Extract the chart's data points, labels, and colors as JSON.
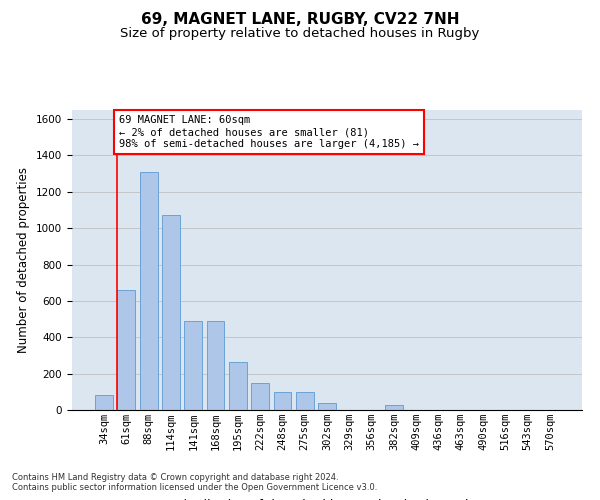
{
  "title1": "69, MAGNET LANE, RUGBY, CV22 7NH",
  "title2": "Size of property relative to detached houses in Rugby",
  "xlabel": "Distribution of detached houses by size in Rugby",
  "ylabel": "Number of detached properties",
  "categories": [
    "34sqm",
    "61sqm",
    "88sqm",
    "114sqm",
    "141sqm",
    "168sqm",
    "195sqm",
    "222sqm",
    "248sqm",
    "275sqm",
    "302sqm",
    "329sqm",
    "356sqm",
    "382sqm",
    "409sqm",
    "436sqm",
    "463sqm",
    "490sqm",
    "516sqm",
    "543sqm",
    "570sqm"
  ],
  "values": [
    80,
    660,
    1310,
    1070,
    490,
    490,
    265,
    150,
    100,
    100,
    40,
    0,
    0,
    30,
    0,
    0,
    0,
    0,
    0,
    0,
    0
  ],
  "bar_color": "#aec6e8",
  "bar_edge_color": "#5b9bd5",
  "annotation_line1": "69 MAGNET LANE: 60sqm",
  "annotation_line2": "← 2% of detached houses are smaller (81)",
  "annotation_line3": "98% of semi-detached houses are larger (4,185) →",
  "annotation_box_color": "white",
  "annotation_box_edge_color": "red",
  "vline_color": "red",
  "ylim": [
    0,
    1650
  ],
  "yticks": [
    0,
    200,
    400,
    600,
    800,
    1000,
    1200,
    1400,
    1600
  ],
  "grid_color": "#c0c0c0",
  "bg_color": "#dce6f1",
  "footer1": "Contains HM Land Registry data © Crown copyright and database right 2024.",
  "footer2": "Contains public sector information licensed under the Open Government Licence v3.0.",
  "title1_fontsize": 11,
  "title2_fontsize": 9.5,
  "xlabel_fontsize": 9,
  "ylabel_fontsize": 8.5,
  "tick_fontsize": 7.5,
  "annotation_fontsize": 7.5,
  "footer_fontsize": 6
}
